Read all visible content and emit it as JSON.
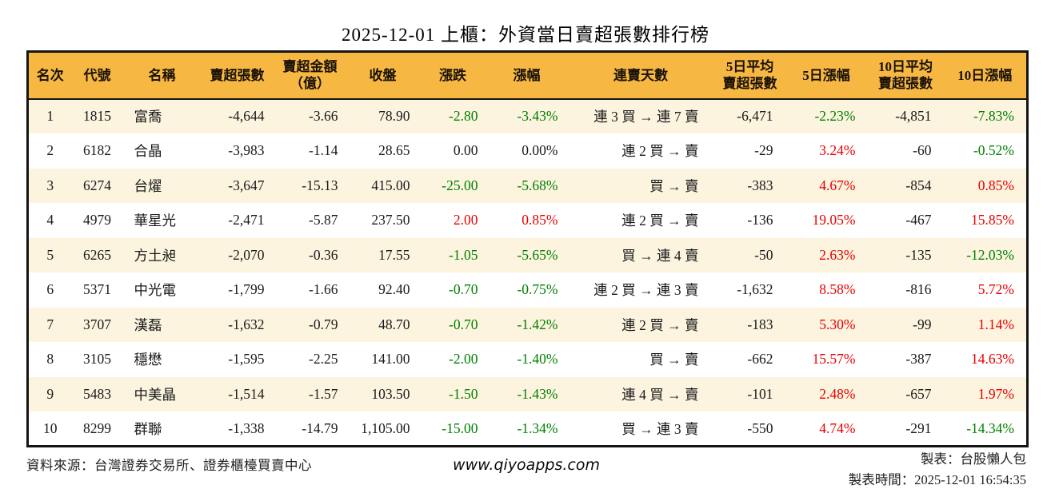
{
  "title": "2025-12-01 上櫃：外資當日賣超張數排行榜",
  "colors": {
    "up": "#e60000",
    "down": "#008000",
    "flat": "#1a1a1a",
    "header_bg": "#f7b843",
    "row_alt_bg": "#fcf4df",
    "border": "#141414"
  },
  "table": {
    "columns": [
      "名次",
      "代號",
      "名稱",
      "賣超張數",
      "賣超金額\n（億）",
      "收盤",
      "漲跌",
      "漲幅",
      "連賣天數",
      "5日平均\n賣超張數",
      "5日漲幅",
      "10日平均\n賣超張數",
      "10日漲幅"
    ],
    "rows": [
      {
        "rank": "1",
        "code": "1815",
        "name": "富喬",
        "net_sell": "-4,644",
        "amount": "-3.66",
        "close": "78.90",
        "change": "-2.80",
        "change_dir": "down",
        "change_pct": "-3.43%",
        "pct_dir": "down",
        "streak": "連 3 買 → 連 7 賣",
        "avg5": "-6,471",
        "pct5": "-2.23%",
        "pct5_dir": "down",
        "avg10": "-4,851",
        "pct10": "-7.83%",
        "pct10_dir": "down"
      },
      {
        "rank": "2",
        "code": "6182",
        "name": "合晶",
        "net_sell": "-3,983",
        "amount": "-1.14",
        "close": "28.65",
        "change": "0.00",
        "change_dir": "flat",
        "change_pct": "0.00%",
        "pct_dir": "flat",
        "streak": "連 2 買 → 賣",
        "avg5": "-29",
        "pct5": "3.24%",
        "pct5_dir": "up",
        "avg10": "-60",
        "pct10": "-0.52%",
        "pct10_dir": "down"
      },
      {
        "rank": "3",
        "code": "6274",
        "name": "台燿",
        "net_sell": "-3,647",
        "amount": "-15.13",
        "close": "415.00",
        "change": "-25.00",
        "change_dir": "down",
        "change_pct": "-5.68%",
        "pct_dir": "down",
        "streak": "買 → 賣",
        "avg5": "-383",
        "pct5": "4.67%",
        "pct5_dir": "up",
        "avg10": "-854",
        "pct10": "0.85%",
        "pct10_dir": "up"
      },
      {
        "rank": "4",
        "code": "4979",
        "name": "華星光",
        "net_sell": "-2,471",
        "amount": "-5.87",
        "close": "237.50",
        "change": "2.00",
        "change_dir": "up",
        "change_pct": "0.85%",
        "pct_dir": "up",
        "streak": "連 2 買 → 賣",
        "avg5": "-136",
        "pct5": "19.05%",
        "pct5_dir": "up",
        "avg10": "-467",
        "pct10": "15.85%",
        "pct10_dir": "up"
      },
      {
        "rank": "5",
        "code": "6265",
        "name": "方土昶",
        "net_sell": "-2,070",
        "amount": "-0.36",
        "close": "17.55",
        "change": "-1.05",
        "change_dir": "down",
        "change_pct": "-5.65%",
        "pct_dir": "down",
        "streak": "買 → 連 4 賣",
        "avg5": "-50",
        "pct5": "2.63%",
        "pct5_dir": "up",
        "avg10": "-135",
        "pct10": "-12.03%",
        "pct10_dir": "down"
      },
      {
        "rank": "6",
        "code": "5371",
        "name": "中光電",
        "net_sell": "-1,799",
        "amount": "-1.66",
        "close": "92.40",
        "change": "-0.70",
        "change_dir": "down",
        "change_pct": "-0.75%",
        "pct_dir": "down",
        "streak": "連 2 買 → 連 3 賣",
        "avg5": "-1,632",
        "pct5": "8.58%",
        "pct5_dir": "up",
        "avg10": "-816",
        "pct10": "5.72%",
        "pct10_dir": "up"
      },
      {
        "rank": "7",
        "code": "3707",
        "name": "漢磊",
        "net_sell": "-1,632",
        "amount": "-0.79",
        "close": "48.70",
        "change": "-0.70",
        "change_dir": "down",
        "change_pct": "-1.42%",
        "pct_dir": "down",
        "streak": "連 2 買 → 賣",
        "avg5": "-183",
        "pct5": "5.30%",
        "pct5_dir": "up",
        "avg10": "-99",
        "pct10": "1.14%",
        "pct10_dir": "up"
      },
      {
        "rank": "8",
        "code": "3105",
        "name": "穩懋",
        "net_sell": "-1,595",
        "amount": "-2.25",
        "close": "141.00",
        "change": "-2.00",
        "change_dir": "down",
        "change_pct": "-1.40%",
        "pct_dir": "down",
        "streak": "買 → 賣",
        "avg5": "-662",
        "pct5": "15.57%",
        "pct5_dir": "up",
        "avg10": "-387",
        "pct10": "14.63%",
        "pct10_dir": "up"
      },
      {
        "rank": "9",
        "code": "5483",
        "name": "中美晶",
        "net_sell": "-1,514",
        "amount": "-1.57",
        "close": "103.50",
        "change": "-1.50",
        "change_dir": "down",
        "change_pct": "-1.43%",
        "pct_dir": "down",
        "streak": "連 4 買 → 賣",
        "avg5": "-101",
        "pct5": "2.48%",
        "pct5_dir": "up",
        "avg10": "-657",
        "pct10": "1.97%",
        "pct10_dir": "up"
      },
      {
        "rank": "10",
        "code": "8299",
        "name": "群聯",
        "net_sell": "-1,338",
        "amount": "-14.79",
        "close": "1,105.00",
        "change": "-15.00",
        "change_dir": "down",
        "change_pct": "-1.34%",
        "pct_dir": "down",
        "streak": "買 → 連 3 賣",
        "avg5": "-550",
        "pct5": "4.74%",
        "pct5_dir": "up",
        "avg10": "-291",
        "pct10": "-14.34%",
        "pct10_dir": "down"
      }
    ]
  },
  "footer": {
    "source": "資料來源：台灣證券交易所、證券櫃檯買賣中心",
    "website": "www.qiyoapps.com",
    "maker": "製表：台股懶人包",
    "timestamp": "製表時間：2025-12-01 16:54:35"
  }
}
